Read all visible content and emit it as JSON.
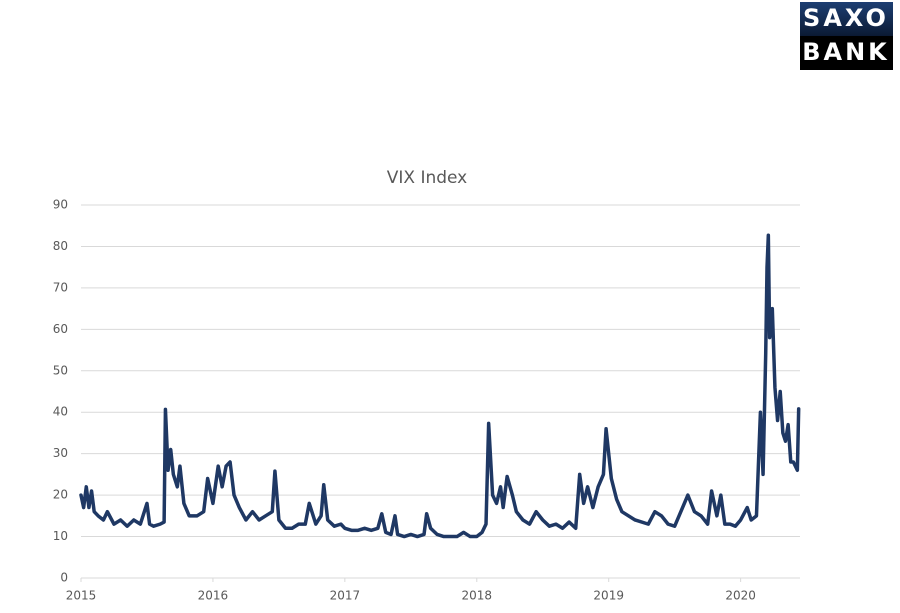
{
  "logo": {
    "line1": "SAXO",
    "line2": "BANK"
  },
  "chart_data": {
    "type": "line",
    "title": "VIX Index",
    "x": [
      2015.0,
      2015.02,
      2015.04,
      2015.06,
      2015.08,
      2015.1,
      2015.13,
      2015.17,
      2015.2,
      2015.25,
      2015.3,
      2015.35,
      2015.4,
      2015.45,
      2015.5,
      2015.52,
      2015.55,
      2015.6,
      2015.63,
      2015.64,
      2015.66,
      2015.68,
      2015.7,
      2015.73,
      2015.75,
      2015.78,
      2015.82,
      2015.88,
      2015.93,
      2015.96,
      2016.0,
      2016.04,
      2016.07,
      2016.1,
      2016.13,
      2016.16,
      2016.2,
      2016.25,
      2016.3,
      2016.35,
      2016.4,
      2016.45,
      2016.47,
      2016.5,
      2016.55,
      2016.6,
      2016.65,
      2016.7,
      2016.73,
      2016.78,
      2016.82,
      2016.84,
      2016.87,
      2016.92,
      2016.97,
      2017.0,
      2017.05,
      2017.1,
      2017.15,
      2017.2,
      2017.25,
      2017.28,
      2017.31,
      2017.35,
      2017.38,
      2017.4,
      2017.45,
      2017.5,
      2017.55,
      2017.6,
      2017.62,
      2017.65,
      2017.7,
      2017.75,
      2017.8,
      2017.85,
      2017.9,
      2017.95,
      2018.0,
      2018.04,
      2018.07,
      2018.09,
      2018.12,
      2018.15,
      2018.18,
      2018.2,
      2018.23,
      2018.27,
      2018.3,
      2018.35,
      2018.4,
      2018.45,
      2018.5,
      2018.55,
      2018.6,
      2018.65,
      2018.7,
      2018.75,
      2018.78,
      2018.81,
      2018.84,
      2018.88,
      2018.92,
      2018.96,
      2018.98,
      2019.02,
      2019.06,
      2019.1,
      2019.2,
      2019.3,
      2019.35,
      2019.4,
      2019.45,
      2019.5,
      2019.6,
      2019.65,
      2019.7,
      2019.75,
      2019.78,
      2019.82,
      2019.85,
      2019.88,
      2019.92,
      2019.96,
      2020.0,
      2020.05,
      2020.08,
      2020.12,
      2020.15,
      2020.17,
      2020.19,
      2020.2,
      2020.21,
      2020.22,
      2020.24,
      2020.26,
      2020.28,
      2020.3,
      2020.32,
      2020.34,
      2020.36,
      2020.38,
      2020.4,
      2020.43,
      2020.44
    ],
    "series": [
      {
        "name": "VIX Index",
        "color": "#1f3864",
        "values": [
          20,
          17,
          22,
          17,
          21,
          16,
          15,
          14,
          16,
          13,
          14,
          12.5,
          14,
          13,
          18,
          13,
          12.5,
          13,
          13.5,
          40.7,
          26,
          31,
          25,
          22,
          27,
          18,
          15,
          15,
          16,
          24,
          18,
          27,
          22,
          27,
          28,
          20,
          17,
          14,
          16,
          14,
          15,
          16,
          25.8,
          14,
          12,
          12,
          13,
          13,
          18,
          13,
          15,
          22.5,
          14,
          12.5,
          13,
          12,
          11.5,
          11.5,
          12,
          11.5,
          12,
          15.5,
          11,
          10.5,
          15,
          10.5,
          10,
          10.5,
          10,
          10.5,
          15.5,
          12,
          10.5,
          10,
          10,
          10,
          11,
          10,
          10,
          11,
          13,
          37.3,
          20,
          18,
          22,
          17,
          24.5,
          20,
          16,
          14,
          13,
          16,
          14,
          12.5,
          13,
          12,
          13.5,
          12,
          25,
          18,
          22,
          17,
          22,
          25,
          36,
          24,
          19,
          16,
          14,
          13,
          16,
          15,
          13,
          12.5,
          20,
          16,
          15,
          13,
          21,
          15,
          20,
          13,
          13,
          12.5,
          14,
          17,
          14,
          15,
          40,
          25,
          54,
          75,
          82.7,
          58,
          65,
          46,
          38,
          45,
          35,
          33,
          37,
          28,
          28,
          26,
          40.8
        ]
      }
    ],
    "xlim": [
      2015,
      2020.45
    ],
    "xticks": [
      2015,
      2016,
      2017,
      2018,
      2019,
      2020
    ],
    "ylim": [
      0,
      90
    ],
    "yticks": [
      0,
      10,
      20,
      30,
      40,
      50,
      60,
      70,
      80,
      90
    ],
    "grid": true
  }
}
